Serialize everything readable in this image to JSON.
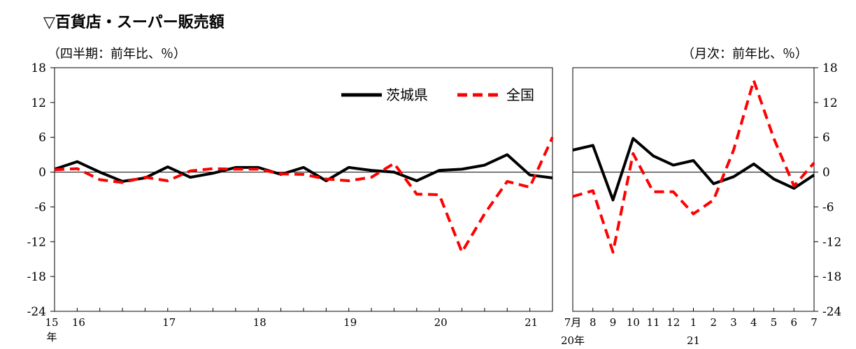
{
  "title": "▽百貨店・スーパー販売額",
  "colors": {
    "ibaraki": "#000000",
    "national": "#ff0000"
  },
  "chart_data": [
    {
      "type": "line",
      "unit_label": "（四半期：前年比、％）",
      "ylim": [
        -24,
        18
      ],
      "yticks": [
        18,
        12,
        6,
        0,
        -6,
        -12,
        -18,
        -24
      ],
      "x_tick_labels": [
        {
          "label": "15",
          "index": 0
        },
        {
          "label": "16",
          "index": 1
        },
        {
          "label": "17",
          "index": 5
        },
        {
          "label": "18",
          "index": 9
        },
        {
          "label": "19",
          "index": 13
        },
        {
          "label": "20",
          "index": 17
        },
        {
          "label": "21",
          "index": 21
        }
      ],
      "x_sub_label": "年",
      "legend": {
        "placement": "top-right"
      },
      "series": [
        {
          "name": "茨城県",
          "style": "solid",
          "values": [
            0.5,
            1.8,
            0.0,
            -1.6,
            -1.0,
            0.9,
            -0.9,
            -0.2,
            0.8,
            0.8,
            -0.4,
            0.8,
            -1.5,
            0.8,
            0.3,
            0.0,
            -1.5,
            0.3,
            0.5,
            1.2,
            3.0,
            -0.5,
            -1.0
          ]
        },
        {
          "name": "全国",
          "style": "dashed",
          "values": [
            0.4,
            0.6,
            -1.3,
            -1.8,
            -0.9,
            -1.5,
            0.2,
            0.6,
            0.5,
            0.5,
            -0.3,
            -0.4,
            -1.2,
            -1.5,
            -0.9,
            1.5,
            -3.8,
            -3.9,
            -13.8,
            -7.2,
            -1.6,
            -2.6,
            6.0
          ]
        }
      ]
    },
    {
      "type": "line",
      "unit_label": "（月次：前年比、％）",
      "ylim": [
        -24,
        18
      ],
      "yticks": [
        18,
        12,
        6,
        0,
        -6,
        -12,
        -18,
        -24
      ],
      "x_tick_labels": [
        "7月",
        "8",
        "9",
        "10",
        "11",
        "12",
        "1",
        "2",
        "3",
        "4",
        "5",
        "6",
        "7"
      ],
      "x_year_labels": [
        {
          "label": "20年",
          "index": 0
        },
        {
          "label": "21",
          "index": 6
        }
      ],
      "series": [
        {
          "name": "茨城県",
          "style": "solid",
          "values": [
            3.8,
            4.6,
            -4.8,
            5.8,
            2.8,
            1.2,
            2.0,
            -2.0,
            -0.8,
            1.4,
            -1.2,
            -2.8,
            -0.5
          ]
        },
        {
          "name": "全国",
          "style": "dashed",
          "values": [
            -4.2,
            -3.2,
            -13.8,
            3.2,
            -3.4,
            -3.4,
            -7.2,
            -4.8,
            3.8,
            15.8,
            5.8,
            -2.4,
            1.6
          ]
        }
      ]
    }
  ]
}
